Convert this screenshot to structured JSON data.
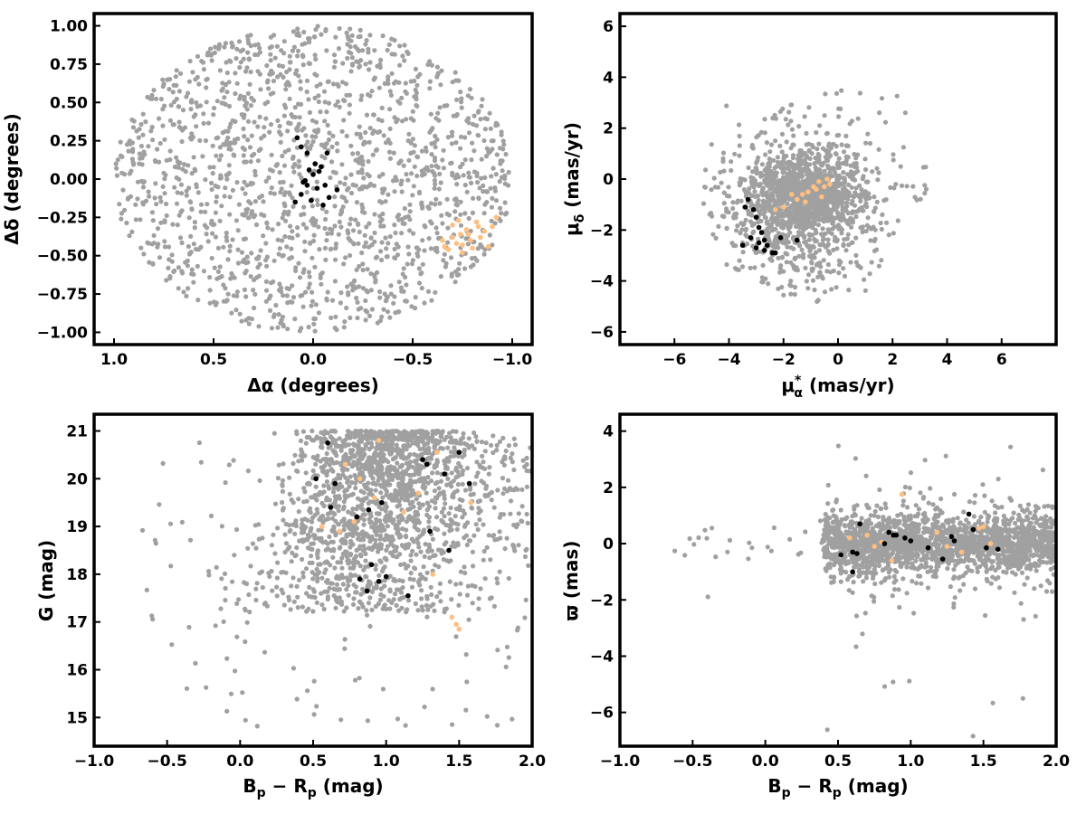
{
  "colors": {
    "field": "#a0a0a0",
    "member_black": "#000000",
    "member_orange": "#ffbf80",
    "frame": "#000000",
    "background": "#ffffff"
  },
  "chart_data": [
    {
      "type": "scatter",
      "xlabel": "Δα (degrees)",
      "ylabel": "Δδ (degrees)",
      "xlim": [
        1.1,
        -1.1
      ],
      "ylim": [
        -1.08,
        1.08
      ],
      "x_inverted": true,
      "xticks": [
        1.0,
        0.5,
        0.0,
        -0.5,
        -1.0
      ],
      "xtick_labels": [
        "1.0",
        "0.5",
        "0.0",
        "−0.5",
        "−1.0"
      ],
      "yticks": [
        1.0,
        0.75,
        0.5,
        0.25,
        0.0,
        -0.25,
        -0.5,
        -0.75,
        -1.0
      ],
      "ytick_labels": [
        "1.00",
        "0.75",
        "0.50",
        "0.25",
        "0.00",
        "−0.25",
        "−0.50",
        "−0.75",
        "−1.00"
      ],
      "grid": false,
      "field": {
        "shape": "ellipse",
        "center": [
          0.0,
          0.0
        ],
        "radius": [
          1.0,
          1.0
        ],
        "count": 1600,
        "seed": 11
      },
      "series": [
        {
          "role": "black",
          "x": [
            0.08,
            0.06,
            0.03,
            -0.01,
            -0.04,
            0.02,
            -0.03,
            0.0,
            0.05,
            -0.06,
            0.09,
            -0.08,
            -0.12,
            0.01,
            -0.05,
            0.03,
            -0.02,
            0.06,
            -0.07,
            0.04
          ],
          "y": [
            0.27,
            0.21,
            0.17,
            0.1,
            0.08,
            0.06,
            0.05,
            0.03,
            -0.02,
            -0.04,
            -0.15,
            -0.12,
            -0.07,
            -0.14,
            -0.17,
            -0.04,
            -0.06,
            -0.1,
            0.17,
            -0.01
          ]
        },
        {
          "role": "orange",
          "x": [
            -0.65,
            -0.68,
            -0.7,
            -0.72,
            -0.74,
            -0.75,
            -0.77,
            -0.79,
            -0.8,
            -0.82,
            -0.84,
            -0.86,
            -0.88,
            -0.9,
            -0.92,
            -0.7,
            -0.75,
            -0.78,
            -0.83,
            -0.66,
            -0.73
          ],
          "y": [
            -0.4,
            -0.46,
            -0.3,
            -0.42,
            -0.36,
            -0.48,
            -0.33,
            -0.4,
            -0.45,
            -0.28,
            -0.38,
            -0.34,
            -0.44,
            -0.31,
            -0.25,
            -0.38,
            -0.43,
            -0.36,
            -0.31,
            -0.44,
            -0.27
          ]
        }
      ]
    },
    {
      "type": "scatter",
      "xlabel": "μα* (mas/yr)",
      "xlabel_parts": {
        "mu": "μ",
        "sub": "α",
        "sup": "*",
        "rest": " (mas/yr)"
      },
      "ylabel": "μδ (mas/yr)",
      "ylabel_parts": {
        "mu": "μ",
        "sub": "δ",
        "rest": " (mas/yr)"
      },
      "xlim": [
        -8,
        8
      ],
      "ylim": [
        -6.5,
        6.5
      ],
      "xticks": [
        -6,
        -4,
        -2,
        0,
        2,
        4,
        6
      ],
      "xtick_labels": [
        "−6",
        "−4",
        "−2",
        "0",
        "2",
        "4",
        "6"
      ],
      "yticks": [
        6,
        4,
        2,
        0,
        -2,
        -4,
        -6
      ],
      "ytick_labels": [
        "6",
        "4",
        "2",
        "0",
        "−2",
        "−4",
        "−6"
      ],
      "grid": false,
      "field": {
        "shape": "pm_cloud",
        "center": [
          -1.0,
          -0.8
        ],
        "count": 1700,
        "seed": 23
      },
      "series": [
        {
          "role": "black",
          "x": [
            -3.3,
            -3.1,
            -3.0,
            -2.9,
            -2.8,
            -2.7,
            -2.6,
            -3.2,
            -2.4,
            -2.1,
            -1.5,
            -3.4,
            -3.0,
            -2.7,
            -2.3,
            -3.5,
            -2.9
          ],
          "y": [
            -0.8,
            -1.2,
            -1.5,
            -1.9,
            -2.1,
            -2.4,
            -2.6,
            -2.3,
            -2.9,
            -2.3,
            -2.4,
            -1.1,
            -2.7,
            -2.8,
            -2.9,
            -2.6,
            -2.5
          ]
        },
        {
          "role": "orange",
          "x": [
            -0.9,
            -0.7,
            -1.1,
            -0.5,
            -0.6,
            -0.3,
            -1.3,
            -1.5,
            -2.3,
            -2.0,
            -1.2,
            -0.8,
            -0.4,
            -1.7
          ],
          "y": [
            -0.3,
            -0.1,
            -0.5,
            -0.3,
            -0.7,
            -0.2,
            -0.6,
            -0.8,
            -1.2,
            -1.1,
            -0.9,
            -0.4,
            0.0,
            -0.6
          ]
        }
      ]
    },
    {
      "type": "scatter",
      "xlabel": "Bp − Rp (mag)",
      "xlabel_parts": {
        "B": "B",
        "bsub": "p",
        "minus": " − ",
        "R": "R",
        "rsub": "p",
        "rest": " (mag)"
      },
      "ylabel": "G (mag)",
      "xlim": [
        -1.0,
        2.0
      ],
      "ylim": [
        14.4,
        21.35
      ],
      "y_inverted_visual": false,
      "xticks": [
        -1.0,
        -0.5,
        0.0,
        0.5,
        1.0,
        1.5,
        2.0
      ],
      "xtick_labels": [
        "−1.0",
        "−0.5",
        "0.0",
        "0.5",
        "1.0",
        "1.5",
        "2.0"
      ],
      "yticks": [
        21,
        20,
        19,
        18,
        17,
        16,
        15
      ],
      "ytick_labels": [
        "21",
        "20",
        "19",
        "18",
        "17",
        "16",
        "15"
      ],
      "grid": false,
      "field": {
        "shape": "cmd",
        "count": 1900,
        "seed": 37
      },
      "series": [
        {
          "role": "black",
          "x": [
            0.6,
            0.52,
            0.65,
            0.62,
            0.8,
            0.88,
            0.82,
            0.95,
            0.9,
            1.0,
            1.15,
            1.25,
            1.28,
            1.3,
            1.4,
            1.43,
            1.5,
            1.57,
            0.97,
            0.87
          ],
          "y": [
            20.75,
            20.0,
            19.9,
            19.4,
            19.2,
            19.35,
            17.9,
            17.85,
            18.2,
            17.95,
            17.55,
            20.4,
            20.3,
            18.9,
            20.1,
            18.5,
            20.55,
            19.9,
            19.5,
            17.65
          ]
        },
        {
          "role": "orange",
          "x": [
            0.95,
            0.72,
            0.78,
            0.82,
            0.92,
            1.12,
            1.32,
            1.45,
            1.48,
            1.5,
            1.58,
            0.56,
            1.35,
            0.68,
            1.22
          ],
          "y": [
            20.8,
            20.3,
            19.1,
            20.0,
            19.6,
            19.3,
            18.0,
            17.1,
            16.95,
            16.85,
            19.5,
            19.0,
            20.55,
            18.9,
            19.7
          ]
        }
      ]
    },
    {
      "type": "scatter",
      "xlabel": "Bp − Rp (mag)",
      "xlabel_parts": {
        "B": "B",
        "bsub": "p",
        "minus": " − ",
        "R": "R",
        "rsub": "p",
        "rest": " (mag)"
      },
      "ylabel": "ϖ (mas)",
      "xlim": [
        -1.0,
        2.0
      ],
      "ylim": [
        -7.2,
        4.6
      ],
      "xticks": [
        -1.0,
        -0.5,
        0.0,
        0.5,
        1.0,
        1.5,
        2.0
      ],
      "xtick_labels": [
        "−1.0",
        "−0.5",
        "0.0",
        "0.5",
        "1.0",
        "1.5",
        "2.0"
      ],
      "yticks": [
        4,
        2,
        0,
        -2,
        -4,
        -6
      ],
      "ytick_labels": [
        "4",
        "2",
        "0",
        "−2",
        "−4",
        "−6"
      ],
      "grid": false,
      "field": {
        "shape": "plx",
        "count": 1900,
        "seed": 53
      },
      "series": [
        {
          "role": "black",
          "x": [
            0.52,
            0.6,
            0.63,
            0.65,
            0.82,
            0.85,
            0.9,
            0.96,
            1.0,
            1.12,
            1.22,
            1.28,
            1.3,
            1.4,
            1.43,
            1.52,
            1.6,
            0.6,
            0.88
          ],
          "y": [
            -0.4,
            -0.3,
            -0.35,
            0.7,
            0.0,
            0.4,
            0.3,
            0.2,
            0.1,
            -0.15,
            -0.55,
            0.25,
            0.1,
            1.05,
            0.5,
            -0.15,
            -0.2,
            -1.0,
            0.3
          ]
        },
        {
          "role": "orange",
          "x": [
            0.94,
            0.7,
            0.75,
            0.8,
            0.87,
            1.18,
            1.35,
            1.47,
            1.5,
            1.55,
            0.58,
            1.25
          ],
          "y": [
            1.75,
            0.3,
            -0.1,
            0.05,
            -0.6,
            0.4,
            -0.3,
            0.55,
            0.6,
            0.0,
            0.2,
            -0.1
          ]
        }
      ]
    }
  ]
}
